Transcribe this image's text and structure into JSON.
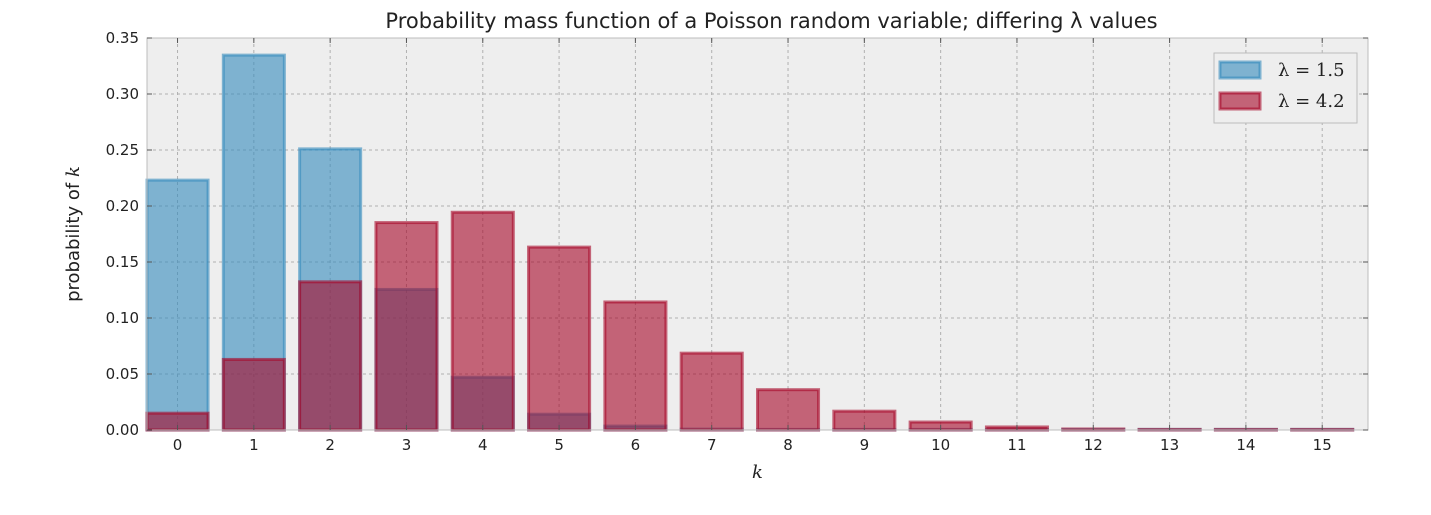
{
  "chart_data": {
    "type": "bar",
    "title": "Probability mass function of a Poisson random variable; differing λ values",
    "xlabel": "k",
    "ylabel": "probability of k",
    "categories": [
      "0",
      "1",
      "2",
      "3",
      "4",
      "5",
      "6",
      "7",
      "8",
      "9",
      "10",
      "11",
      "12",
      "13",
      "14",
      "15"
    ],
    "ylim": [
      0,
      0.35
    ],
    "yticks": [
      "0.00",
      "0.05",
      "0.10",
      "0.15",
      "0.20",
      "0.25",
      "0.30",
      "0.35"
    ],
    "grid": true,
    "legend_position": "top-right",
    "series": [
      {
        "name": "λ = 1.5",
        "color": "#348ABD",
        "values": [
          0.2231,
          0.3347,
          0.251,
          0.1255,
          0.0471,
          0.0141,
          0.0035,
          0.0008,
          0.0001,
          0.0,
          0.0,
          0.0,
          0.0,
          0.0,
          0.0,
          0.0
        ]
      },
      {
        "name": "λ = 4.2",
        "color": "#A60628",
        "values": [
          0.015,
          0.063,
          0.1323,
          0.1852,
          0.1944,
          0.1633,
          0.1143,
          0.0686,
          0.036,
          0.0168,
          0.0071,
          0.0027,
          0.0009,
          0.0003,
          0.0001,
          0.0
        ]
      }
    ]
  }
}
